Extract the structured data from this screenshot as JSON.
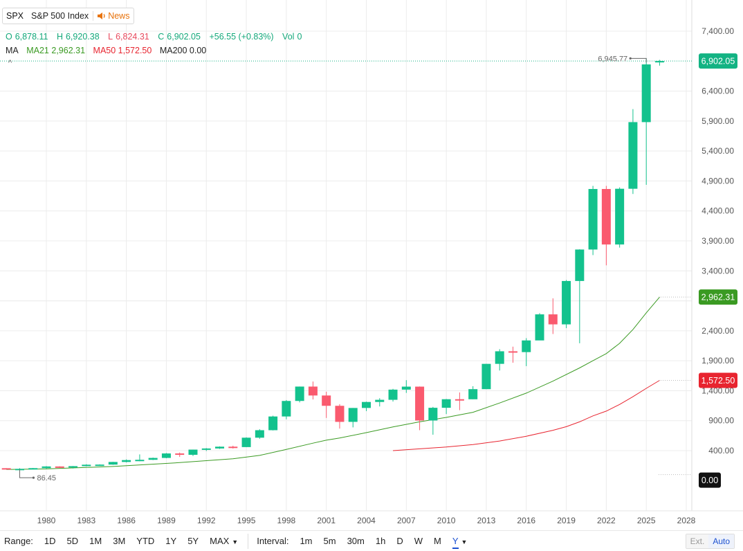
{
  "header": {
    "symbol": "SPX",
    "name": "S&P 500 Index",
    "news_label": "News",
    "open_label": "O",
    "open": "6,878.11",
    "high_label": "H",
    "high": "6,920.38",
    "low_label": "L",
    "low": "6,824.31",
    "close_label": "C",
    "close": "6,902.05",
    "change": "+56.55 (+0.83%)",
    "vol_label": "Vol",
    "vol": "0",
    "ma_label": "MA",
    "ma21_label": "MA21",
    "ma21": "2,962.31",
    "ma50_label": "MA50",
    "ma50": "1,572.50",
    "ma200_label": "MA200",
    "ma200": "0.00",
    "collapse_glyph": "^"
  },
  "toolbar": {
    "range_label": "Range:",
    "ranges": [
      "1D",
      "5D",
      "1M",
      "3M",
      "YTD",
      "1Y",
      "5Y",
      "MAX"
    ],
    "interval_label": "Interval:",
    "intervals": [
      "1m",
      "5m",
      "30m",
      "1h",
      "D",
      "W",
      "M",
      "Y"
    ],
    "active_interval": "Y",
    "ext_label": "Ext.",
    "auto_label": "Auto"
  },
  "colors": {
    "up": "#13c28d",
    "down": "#fa5a6e",
    "ma21": "#3a9a22",
    "ma50": "#e8242f",
    "grid": "#ececec",
    "price_tag": "#13b383"
  },
  "chart_data": {
    "type": "candlestick",
    "title": "SPX S&P 500 Index",
    "interval": "Y",
    "xlim": [
      1977,
      2030
    ],
    "ylim": [
      -300,
      7600
    ],
    "y_ticks": [
      400,
      900,
      1400,
      1900,
      2400,
      2900,
      3400,
      3900,
      4400,
      4900,
      5400,
      5900,
      6400,
      7400
    ],
    "y_tick_labels": [
      "400.00",
      "900.00",
      "1,400.00",
      "1,900.00",
      "2,400.00",
      "",
      "3,400.00",
      "3,900.00",
      "4,400.00",
      "4,900.00",
      "5,400.00",
      "5,900.00",
      "6,400.00",
      "7,400.00"
    ],
    "x_ticks": [
      1980,
      1983,
      1986,
      1989,
      1992,
      1995,
      1998,
      2001,
      2004,
      2007,
      2010,
      2013,
      2016,
      2019,
      2022,
      2025,
      2028
    ],
    "candles": [
      {
        "year": 1977,
        "o": 107,
        "h": 108,
        "l": 88,
        "c": 95
      },
      {
        "year": 1978,
        "o": 95,
        "h": 107,
        "l": 86.45,
        "c": 96
      },
      {
        "year": 1979,
        "o": 96,
        "h": 111,
        "l": 96,
        "c": 108
      },
      {
        "year": 1980,
        "o": 108,
        "h": 141,
        "l": 98,
        "c": 136
      },
      {
        "year": 1981,
        "o": 136,
        "h": 139,
        "l": 112,
        "c": 123
      },
      {
        "year": 1982,
        "o": 123,
        "h": 143,
        "l": 102,
        "c": 141
      },
      {
        "year": 1983,
        "o": 141,
        "h": 173,
        "l": 138,
        "c": 165
      },
      {
        "year": 1984,
        "o": 165,
        "h": 171,
        "l": 147,
        "c": 167
      },
      {
        "year": 1985,
        "o": 167,
        "h": 213,
        "l": 163,
        "c": 211
      },
      {
        "year": 1986,
        "o": 211,
        "h": 254,
        "l": 203,
        "c": 242
      },
      {
        "year": 1987,
        "o": 242,
        "h": 337,
        "l": 223,
        "c": 247
      },
      {
        "year": 1988,
        "o": 247,
        "h": 284,
        "l": 242,
        "c": 278
      },
      {
        "year": 1989,
        "o": 278,
        "h": 360,
        "l": 273,
        "c": 353
      },
      {
        "year": 1990,
        "o": 353,
        "h": 369,
        "l": 295,
        "c": 330
      },
      {
        "year": 1991,
        "o": 330,
        "h": 418,
        "l": 311,
        "c": 417
      },
      {
        "year": 1992,
        "o": 417,
        "h": 442,
        "l": 394,
        "c": 436
      },
      {
        "year": 1993,
        "o": 436,
        "h": 471,
        "l": 429,
        "c": 466
      },
      {
        "year": 1994,
        "o": 466,
        "h": 482,
        "l": 435,
        "c": 459
      },
      {
        "year": 1995,
        "o": 459,
        "h": 622,
        "l": 459,
        "c": 616
      },
      {
        "year": 1996,
        "o": 616,
        "h": 757,
        "l": 598,
        "c": 741
      },
      {
        "year": 1997,
        "o": 741,
        "h": 983,
        "l": 737,
        "c": 970
      },
      {
        "year": 1998,
        "o": 970,
        "h": 1244,
        "l": 923,
        "c": 1229
      },
      {
        "year": 1999,
        "o": 1229,
        "h": 1470,
        "l": 1205,
        "c": 1469
      },
      {
        "year": 2000,
        "o": 1469,
        "h": 1553,
        "l": 1254,
        "c": 1320
      },
      {
        "year": 2001,
        "o": 1320,
        "h": 1383,
        "l": 945,
        "c": 1148
      },
      {
        "year": 2002,
        "o": 1148,
        "h": 1176,
        "l": 768,
        "c": 880
      },
      {
        "year": 2003,
        "o": 880,
        "h": 1112,
        "l": 788,
        "c": 1112
      },
      {
        "year": 2004,
        "o": 1112,
        "h": 1217,
        "l": 1060,
        "c": 1212
      },
      {
        "year": 2005,
        "o": 1212,
        "h": 1275,
        "l": 1137,
        "c": 1248
      },
      {
        "year": 2006,
        "o": 1248,
        "h": 1431,
        "l": 1219,
        "c": 1418
      },
      {
        "year": 2007,
        "o": 1418,
        "h": 1576,
        "l": 1363,
        "c": 1468
      },
      {
        "year": 2008,
        "o": 1468,
        "h": 1471,
        "l": 741,
        "c": 903
      },
      {
        "year": 2009,
        "o": 903,
        "h": 1130,
        "l": 666,
        "c": 1115
      },
      {
        "year": 2010,
        "o": 1115,
        "h": 1262,
        "l": 1010,
        "c": 1258
      },
      {
        "year": 2011,
        "o": 1258,
        "h": 1371,
        "l": 1075,
        "c": 1257
      },
      {
        "year": 2012,
        "o": 1257,
        "h": 1475,
        "l": 1258,
        "c": 1426
      },
      {
        "year": 2013,
        "o": 1426,
        "h": 1849,
        "l": 1426,
        "c": 1848
      },
      {
        "year": 2014,
        "o": 1848,
        "h": 2093,
        "l": 1737,
        "c": 2058
      },
      {
        "year": 2015,
        "o": 2058,
        "h": 2135,
        "l": 1867,
        "c": 2044
      },
      {
        "year": 2016,
        "o": 2044,
        "h": 2277,
        "l": 1810,
        "c": 2239
      },
      {
        "year": 2017,
        "o": 2239,
        "h": 2694,
        "l": 2245,
        "c": 2674
      },
      {
        "year": 2018,
        "o": 2674,
        "h": 2941,
        "l": 2346,
        "c": 2507
      },
      {
        "year": 2019,
        "o": 2507,
        "h": 3247,
        "l": 2444,
        "c": 3231
      },
      {
        "year": 2020,
        "o": 3231,
        "h": 3760,
        "l": 2192,
        "c": 3756
      },
      {
        "year": 2021,
        "o": 3756,
        "h": 4818,
        "l": 3663,
        "c": 4766
      },
      {
        "year": 2022,
        "o": 4766,
        "h": 4818,
        "l": 3492,
        "c": 3840
      },
      {
        "year": 2023,
        "o": 3840,
        "h": 4793,
        "l": 3788,
        "c": 4770
      },
      {
        "year": 2024,
        "o": 4770,
        "h": 6099,
        "l": 4683,
        "c": 5882
      },
      {
        "year": 2025,
        "o": 5882,
        "h": 6945.77,
        "l": 4835,
        "c": 6845
      },
      {
        "year": 2026,
        "o": 6878.11,
        "h": 6920.38,
        "l": 6824.31,
        "c": 6902.05
      }
    ],
    "ma21": [
      {
        "year": 1977,
        "v": 86
      },
      {
        "year": 1980,
        "v": 95
      },
      {
        "year": 1985,
        "v": 135
      },
      {
        "year": 1990,
        "v": 200
      },
      {
        "year": 1994,
        "v": 265
      },
      {
        "year": 1996,
        "v": 320
      },
      {
        "year": 1998,
        "v": 420
      },
      {
        "year": 2000,
        "v": 525
      },
      {
        "year": 2001,
        "v": 575
      },
      {
        "year": 2002,
        "v": 610
      },
      {
        "year": 2004,
        "v": 700
      },
      {
        "year": 2006,
        "v": 795
      },
      {
        "year": 2008,
        "v": 880
      },
      {
        "year": 2010,
        "v": 955
      },
      {
        "year": 2012,
        "v": 1040
      },
      {
        "year": 2014,
        "v": 1195
      },
      {
        "year": 2016,
        "v": 1360
      },
      {
        "year": 2018,
        "v": 1560
      },
      {
        "year": 2020,
        "v": 1780
      },
      {
        "year": 2021,
        "v": 1900
      },
      {
        "year": 2022,
        "v": 2020
      },
      {
        "year": 2023,
        "v": 2190
      },
      {
        "year": 2024,
        "v": 2420
      },
      {
        "year": 2025,
        "v": 2700
      },
      {
        "year": 2026,
        "v": 2962.31
      }
    ],
    "ma50": [
      {
        "year": 2006,
        "v": 400
      },
      {
        "year": 2008,
        "v": 430
      },
      {
        "year": 2010,
        "v": 460
      },
      {
        "year": 2012,
        "v": 500
      },
      {
        "year": 2014,
        "v": 560
      },
      {
        "year": 2016,
        "v": 640
      },
      {
        "year": 2018,
        "v": 740
      },
      {
        "year": 2019,
        "v": 800
      },
      {
        "year": 2020,
        "v": 880
      },
      {
        "year": 2021,
        "v": 980
      },
      {
        "year": 2022,
        "v": 1060
      },
      {
        "year": 2023,
        "v": 1170
      },
      {
        "year": 2024,
        "v": 1300
      },
      {
        "year": 2025,
        "v": 1440
      },
      {
        "year": 2026,
        "v": 1572.5
      }
    ],
    "last_price": "6,902.05",
    "ma21_tag": "2,962.31",
    "ma50_tag": "1,572.50",
    "ma200_tag": "0.00",
    "high_annotation": "6,945.77",
    "low_annotation": "86.45"
  }
}
